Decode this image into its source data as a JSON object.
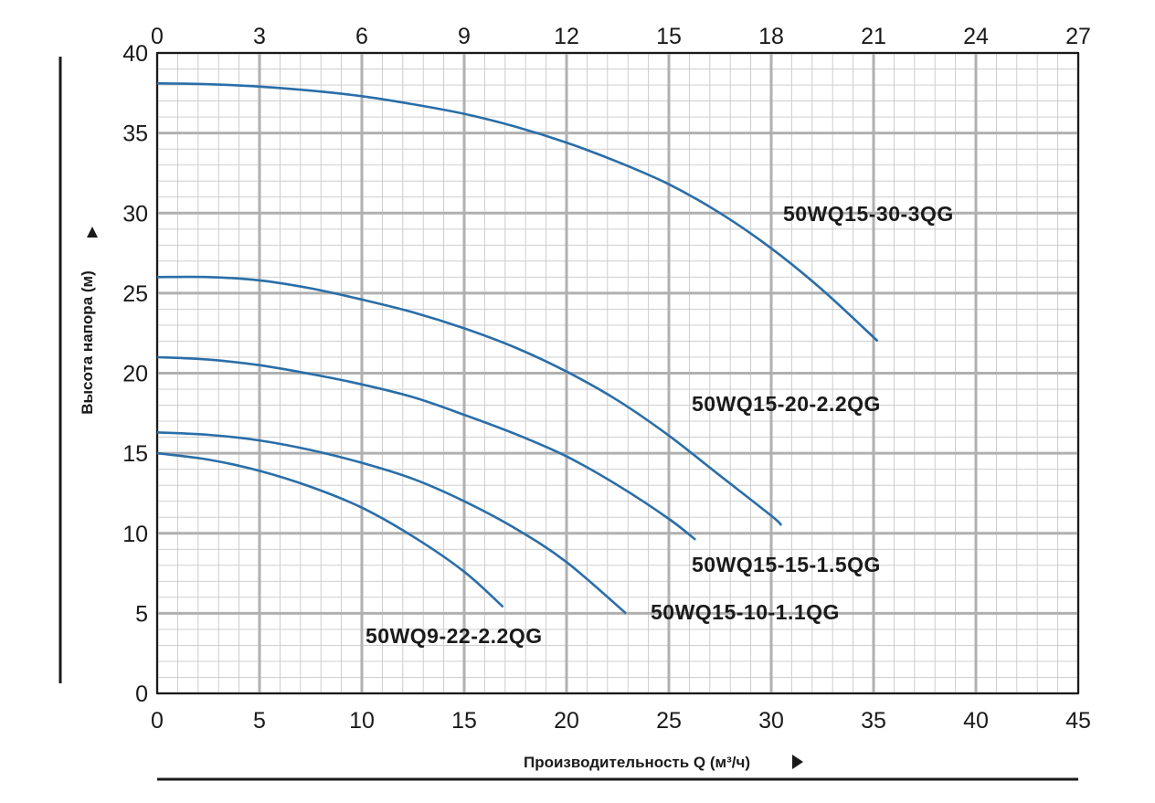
{
  "chart_data": {
    "type": "line",
    "ylabel": "Высота напора (м)",
    "xlabel": "Производительность Q (м³/ч)",
    "xlim": [
      0,
      45
    ],
    "ylim": [
      0,
      40
    ],
    "x_ticks": [
      "0",
      "5",
      "10",
      "15",
      "20",
      "25",
      "30",
      "35",
      "40",
      "45"
    ],
    "y_ticks": [
      "0",
      "5",
      "10",
      "15",
      "20",
      "25",
      "30",
      "35",
      "40"
    ],
    "x2_ticks": [
      "0",
      "3",
      "6",
      "9",
      "12",
      "15",
      "18",
      "21",
      "24",
      "27"
    ],
    "x2lim": [
      0,
      27
    ],
    "grid": true,
    "series": [
      {
        "name": "50WQ15-30-3QG",
        "x": [
          0,
          2.5,
          5,
          7.5,
          10,
          12.5,
          15,
          17.5,
          20,
          22.5,
          25,
          27.5,
          30,
          32.5,
          35.2
        ],
        "y": [
          38.1,
          38.05,
          37.9,
          37.65,
          37.3,
          36.8,
          36.2,
          35.4,
          34.4,
          33.2,
          31.8,
          30,
          27.8,
          25.2,
          22
        ]
      },
      {
        "name": "50WQ15-20-2.2QG",
        "x": [
          0,
          2.5,
          5,
          7.5,
          10,
          12.5,
          15,
          17.5,
          20,
          22.5,
          25,
          27.5,
          30,
          30.5
        ],
        "y": [
          26,
          26,
          25.8,
          25.3,
          24.6,
          23.8,
          22.8,
          21.6,
          20.1,
          18.3,
          16.1,
          13.6,
          11.1,
          10.5
        ]
      },
      {
        "name": "50WQ15-15-1.5QG",
        "x": [
          0,
          2.5,
          5,
          7.5,
          10,
          12.5,
          15,
          17.5,
          20,
          22.5,
          25,
          26.3
        ],
        "y": [
          21,
          20.85,
          20.5,
          19.95,
          19.3,
          18.5,
          17.4,
          16.2,
          14.8,
          13,
          10.9,
          9.6
        ]
      },
      {
        "name": "50WQ15-10-1.1QG",
        "x": [
          0,
          2.5,
          5,
          7.5,
          10,
          12.5,
          15,
          17.5,
          20,
          22.9
        ],
        "y": [
          16.3,
          16.15,
          15.8,
          15.2,
          14.4,
          13.4,
          12,
          10.3,
          8.2,
          5
        ]
      },
      {
        "name": "50WQ9-22-2.2QG",
        "x": [
          0,
          2.5,
          5,
          7.5,
          10,
          12.5,
          15,
          16.9
        ],
        "y": [
          15,
          14.6,
          13.9,
          12.9,
          11.6,
          9.8,
          7.6,
          5.4
        ]
      }
    ]
  }
}
